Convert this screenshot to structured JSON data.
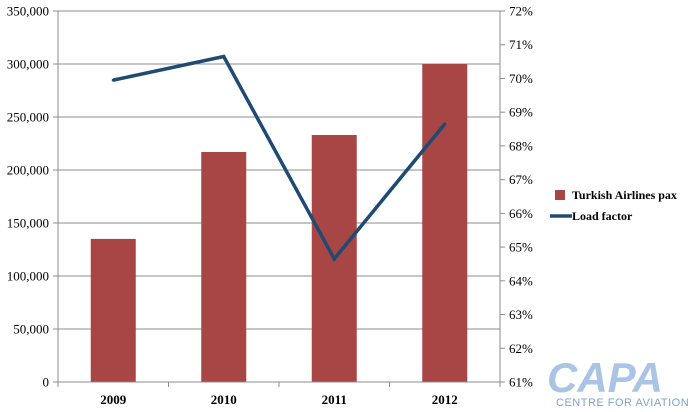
{
  "chart_data": {
    "type": "bar+line",
    "categories": [
      "2009",
      "2010",
      "2011",
      "2012"
    ],
    "series": [
      {
        "name": "Turkish Airlines pax",
        "type": "bar",
        "axis": "left",
        "color": "#a84545",
        "values": [
          135000,
          217000,
          233000,
          300000
        ]
      },
      {
        "name": "Load factor",
        "type": "line",
        "axis": "right",
        "color": "#1f4a72",
        "values": [
          69.95,
          70.65,
          64.65,
          68.65
        ]
      }
    ],
    "y_left": {
      "range": [
        0,
        350000
      ],
      "ticks": [
        0,
        50000,
        100000,
        150000,
        200000,
        250000,
        300000,
        350000
      ],
      "tick_labels": [
        "0",
        "50,000",
        "100,000",
        "150,000",
        "200,000",
        "250,000",
        "300,000",
        "350,000"
      ]
    },
    "y_right": {
      "range": [
        61,
        72
      ],
      "ticks": [
        61,
        62,
        63,
        64,
        65,
        66,
        67,
        68,
        69,
        70,
        71,
        72
      ],
      "tick_labels": [
        "61%",
        "62%",
        "63%",
        "64%",
        "65%",
        "66%",
        "67%",
        "68%",
        "69%",
        "70%",
        "71%",
        "72%"
      ]
    },
    "grid": "horizontal",
    "legend_position": "right"
  },
  "watermark": {
    "logo_text": "CAPA",
    "subtitle": "CENTRE FOR AVIATION"
  }
}
